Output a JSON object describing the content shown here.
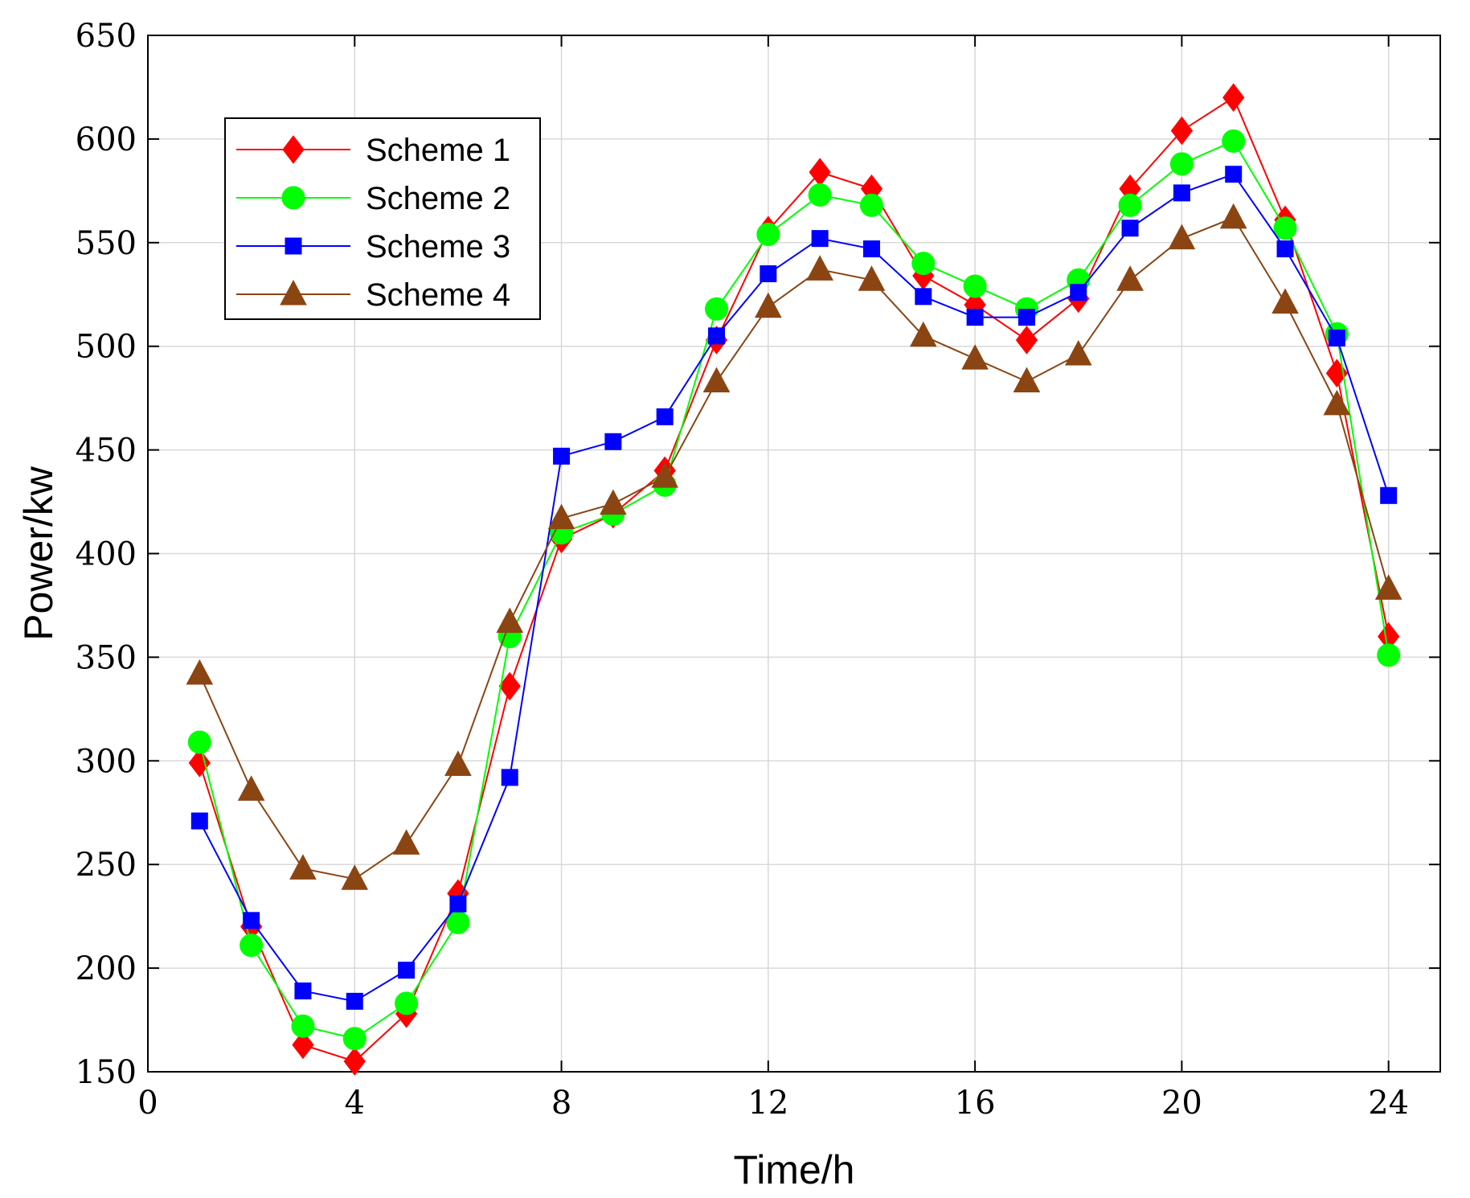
{
  "chart_data": {
    "type": "line",
    "xlabel": "Time/h",
    "ylabel": "Power/kw",
    "xlim": [
      0,
      25
    ],
    "ylim": [
      150,
      650
    ],
    "xticks": [
      0,
      4,
      8,
      12,
      16,
      20,
      24
    ],
    "yticks": [
      150,
      200,
      250,
      300,
      350,
      400,
      450,
      500,
      550,
      600,
      650
    ],
    "grid": true,
    "legend_position": "top-left",
    "x": [
      1,
      2,
      3,
      4,
      5,
      6,
      7,
      8,
      9,
      10,
      11,
      12,
      13,
      14,
      15,
      16,
      17,
      18,
      19,
      20,
      21,
      22,
      23,
      24
    ],
    "series": [
      {
        "name": "Scheme 1",
        "color": "#ff0000",
        "marker": "diamond",
        "values": [
          299,
          220,
          163,
          155,
          178,
          236,
          336,
          407,
          419,
          440,
          503,
          556,
          584,
          576,
          534,
          520,
          503,
          523,
          576,
          604,
          620,
          561,
          487,
          360
        ]
      },
      {
        "name": "Scheme 2",
        "color": "#00ff00",
        "marker": "circle",
        "values": [
          309,
          211,
          172,
          166,
          183,
          222,
          360,
          410,
          419,
          433,
          518,
          554,
          573,
          568,
          540,
          529,
          518,
          532,
          568,
          588,
          599,
          557,
          506,
          351
        ]
      },
      {
        "name": "Scheme 3",
        "color": "#0000ff",
        "marker": "square",
        "values": [
          271,
          223,
          189,
          184,
          199,
          231,
          292,
          447,
          454,
          466,
          505,
          535,
          552,
          547,
          524,
          514,
          514,
          526,
          557,
          574,
          583,
          547,
          504,
          428
        ]
      },
      {
        "name": "Scheme 4",
        "color": "#8b4513",
        "marker": "triangle",
        "values": [
          342,
          286,
          248,
          243,
          260,
          298,
          367,
          417,
          424,
          437,
          483,
          519,
          537,
          532,
          505,
          494,
          483,
          496,
          532,
          552,
          562,
          521,
          472,
          383
        ]
      }
    ]
  }
}
